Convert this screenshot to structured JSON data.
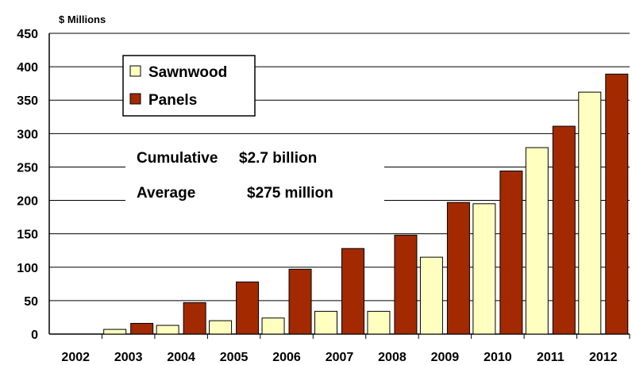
{
  "chart_data": {
    "type": "bar",
    "unit_label": "$ Millions",
    "categories": [
      "2002",
      "2003",
      "2004",
      "2005",
      "2006",
      "2007",
      "2008",
      "2009",
      "2010",
      "2011",
      "2012"
    ],
    "series": [
      {
        "name": "Sawnwood",
        "color": "#ffffc0",
        "values": [
          0,
          7,
          13,
          20,
          24,
          34,
          34,
          115,
          195,
          279,
          362
        ]
      },
      {
        "name": "Panels",
        "color": "#a32a00",
        "values": [
          0,
          16,
          47,
          78,
          97,
          128,
          148,
          197,
          244,
          311,
          389
        ]
      }
    ],
    "ylim": [
      0,
      450
    ],
    "yticks": [
      0,
      50,
      100,
      150,
      200,
      250,
      300,
      350,
      400,
      450
    ],
    "grid": true,
    "legend_position": "top-left",
    "annotations": [
      {
        "label": "Cumulative",
        "value": "$2.7 billion"
      },
      {
        "label": "Average",
        "value": "$275 million"
      }
    ]
  }
}
